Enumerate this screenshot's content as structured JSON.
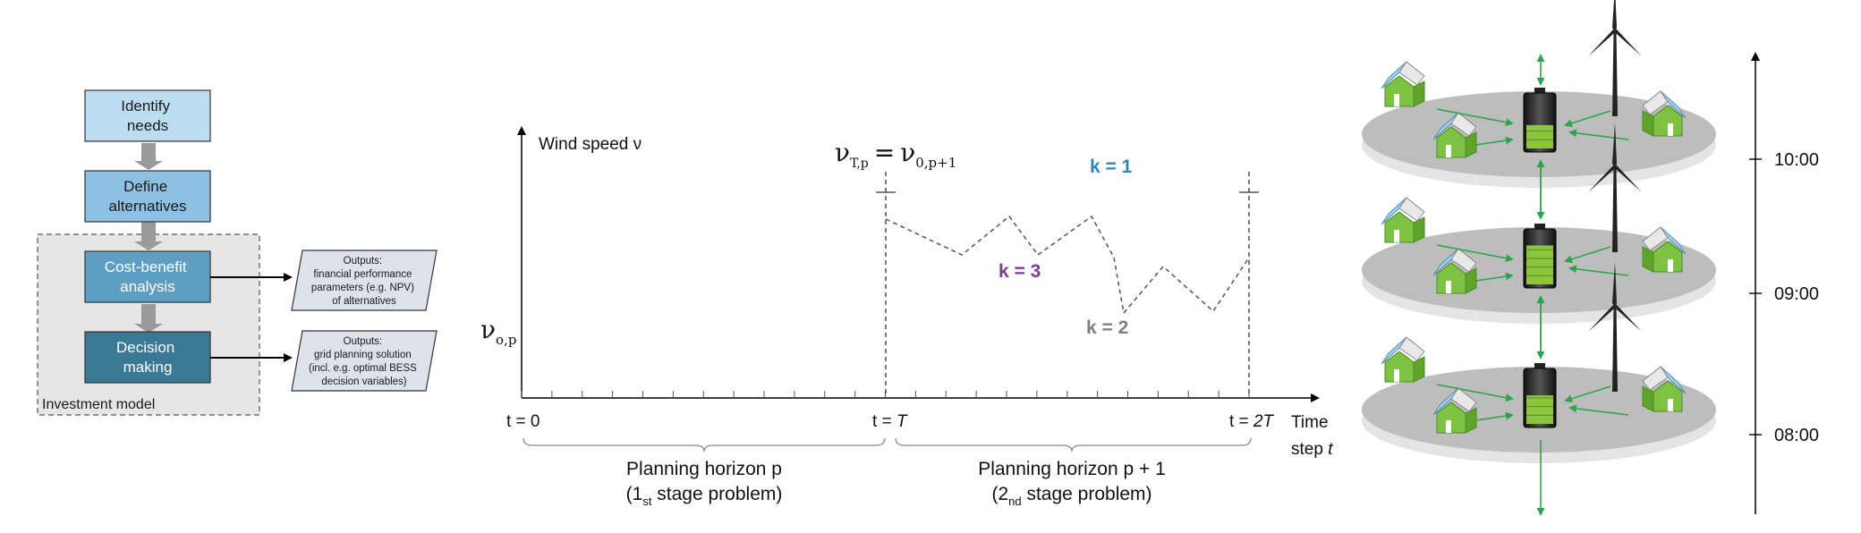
{
  "flowchart": {
    "box1": [
      "Identify",
      "needs"
    ],
    "box2": [
      "Define",
      "alternatives"
    ],
    "box3": [
      "Cost-benefit",
      "analysis"
    ],
    "box4": [
      "Decision",
      "making"
    ],
    "group_label": "Investment model",
    "output1": [
      "Outputs:",
      "financial performance",
      "parameters (e.g. NPV)",
      "of alternatives"
    ],
    "output2": [
      "Outputs:",
      "grid planning solution",
      "(incl. e.g. optimal BESS",
      "decision variables)"
    ],
    "colors": {
      "box1": "#bcdcf2",
      "box2": "#8dc0e2",
      "box3": "#5f9ec4",
      "box4": "#3a7996"
    }
  },
  "timeline": {
    "y_label": "Wind speed ν",
    "nu_sym": "ν",
    "v0_sub": "o,p",
    "vT_sub1": "T,p",
    "eq": "=",
    "vT_sub2": "0,p+1",
    "t0": "t = 0",
    "tT_pre": "t = ",
    "tT_var": "T",
    "t2T_pre": "t = ",
    "t2T_var": "2T",
    "x_label_1": "Time",
    "x_label_2": "step ",
    "x_label_var": "t",
    "horizon1": "Planning horizon p",
    "horizon1_sub_a": "(1",
    "horizon1_sub_s": "st",
    "horizon1_sub_b": " stage problem)",
    "horizon2": "Planning horizon p + 1",
    "horizon2_sub_a": "(2",
    "horizon2_sub_s": "nd",
    "horizon2_sub_b": " stage problem)",
    "k1": "k = 1",
    "k2": "k = 2",
    "k3": "k = 3",
    "colors": {
      "k1": "#2e86c1",
      "k2": "#7f7f7f",
      "k3": "#7d3c98"
    }
  },
  "layers": {
    "times": [
      "10:00",
      "09:00",
      "08:00"
    ],
    "colors": {
      "disk": "#bdbdbd",
      "house": "#7dc243",
      "arrow": "#2ea44f",
      "battery": "#8cc63f"
    }
  }
}
